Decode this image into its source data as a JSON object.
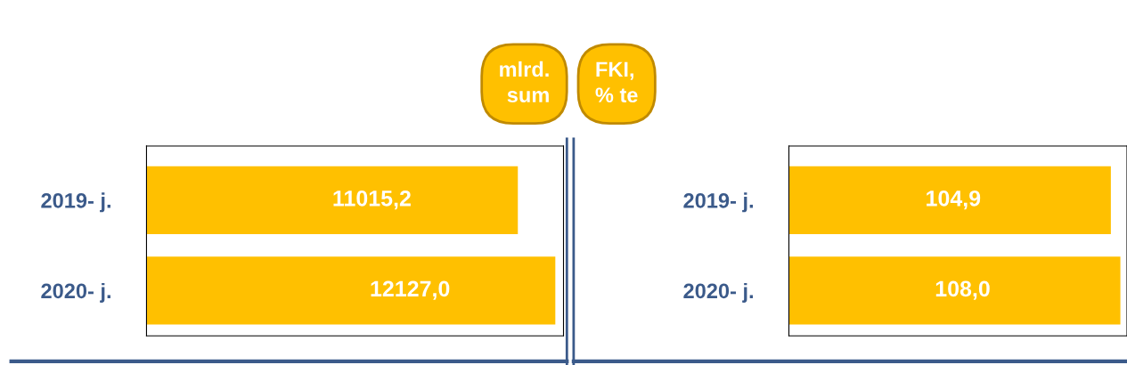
{
  "chart_data": [
    {
      "type": "bar",
      "orientation": "horizontal",
      "title": "mlrd.\nsum",
      "categories": [
        "2019- j.",
        "2020- j."
      ],
      "values": [
        11015.2,
        12127.0
      ],
      "value_labels": [
        "11015,2",
        "12127,0"
      ],
      "color": "#ffc000",
      "tick_labels": "y"
    },
    {
      "type": "bar",
      "orientation": "horizontal",
      "title": "FKI,\n% te",
      "categories": [
        "2019- j.",
        "2020- j."
      ],
      "values": [
        104.9,
        108.0
      ],
      "value_labels": [
        "104,9",
        "108,0"
      ],
      "color": "#ffc000",
      "tick_labels": "y"
    }
  ]
}
